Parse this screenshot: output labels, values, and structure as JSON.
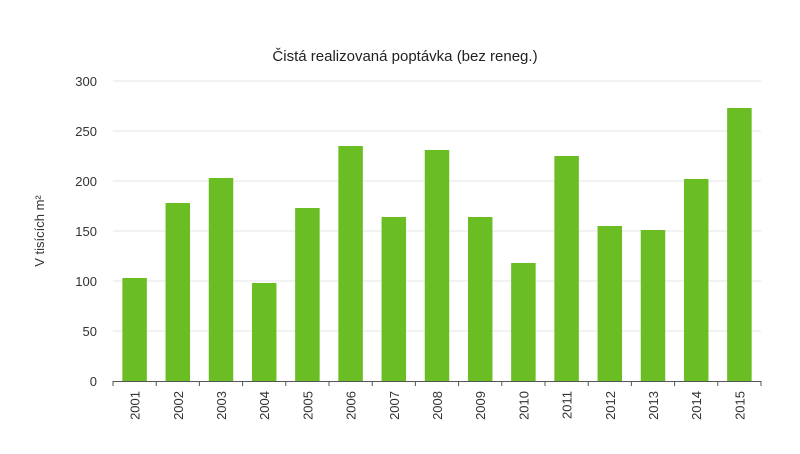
{
  "chart_data": {
    "type": "bar",
    "title": "Čistá realizovaná poptávka (bez reneg.)",
    "xlabel": "",
    "ylabel": "V tisících m²",
    "categories": [
      "2001",
      "2002",
      "2003",
      "2004",
      "2005",
      "2006",
      "2007",
      "2008",
      "2009",
      "2010",
      "2011",
      "2012",
      "2013",
      "2014",
      "2015"
    ],
    "values": [
      103,
      178,
      203,
      98,
      173,
      235,
      164,
      231,
      164,
      118,
      225,
      155,
      151,
      202,
      273
    ],
    "ylim": [
      0,
      300
    ],
    "yticks": [
      "0",
      "50",
      "100",
      "150",
      "200",
      "250",
      "300"
    ],
    "grid": true,
    "legend": "none",
    "bar_color": "#6abd23"
  }
}
